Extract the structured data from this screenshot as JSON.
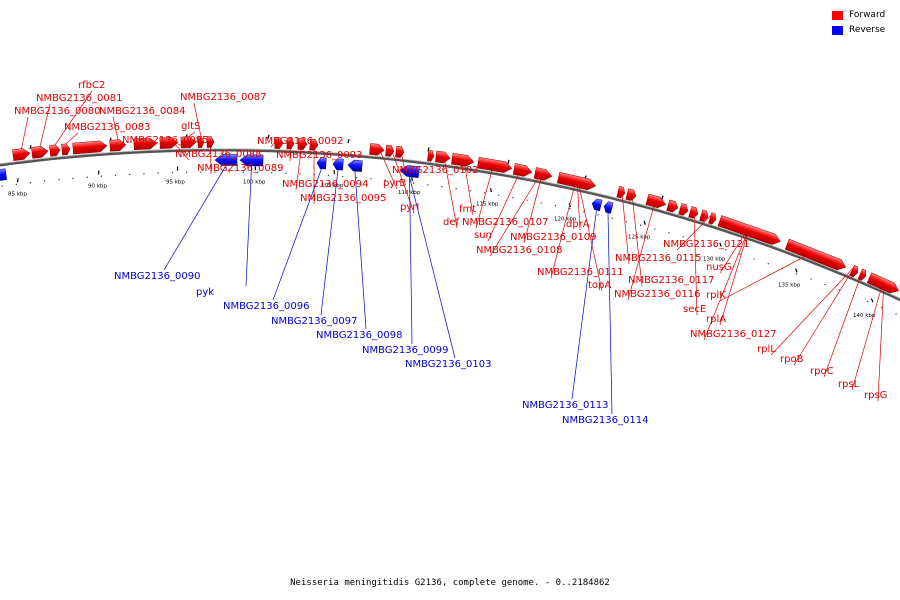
{
  "legend": {
    "forward_label": "Forward",
    "reverse_label": "Reverse",
    "forward_color": "#ff0000",
    "reverse_color": "#0000ff"
  },
  "caption": "Neisseria meningitidis G2136, complete genome. - 0..2184862",
  "ticks": [
    "85 kbp",
    "90 kbp",
    "95 kbp",
    "100 kbp",
    "105 kbp",
    "110 kbp",
    "115 kbp",
    "120 kbp",
    "125 kbp",
    "130 kbp",
    "135 kbp",
    "140 kbp"
  ],
  "forward_labels": [
    "rfbC2",
    "NMBG2136_0081",
    "NMBG2136_0080",
    "NMBG2136_0084",
    "NMBG2136_0087",
    "NMBG2136_0083",
    "gltS",
    "NMBG2136_0085",
    "NMBG2136_0088",
    "NMBG2136_0089",
    "NMBG2136_0092",
    "NMBG2136_0093",
    "NMBG2136_0094",
    "NMBG2136_0095",
    "NMBG2136_0102",
    "pyrB",
    "pyrI",
    "fmt",
    "def",
    "NMBG2136_0107",
    "dprA",
    "sun",
    "NMBG2136_0109",
    "NMBG2136_0108",
    "NMBG2136_0121",
    "NMBG2136_0115",
    "nusG",
    "NMBG2136_0111",
    "NMBG2136_0117",
    "topA",
    "rplK",
    "NMBG2136_0116",
    "secE",
    "rplA",
    "NMBG2136_0127",
    "rplL",
    "rpoB",
    "rpoC",
    "rpsL",
    "rpsG"
  ],
  "reverse_labels": [
    "NMBG2136_0090",
    "pyk",
    "NMBG2136_0096",
    "NMBG2136_0097",
    "NMBG2136_0098",
    "NMBG2136_0099",
    "NMBG2136_0103",
    "NMBG2136_0113",
    "NMBG2136_0114"
  ]
}
